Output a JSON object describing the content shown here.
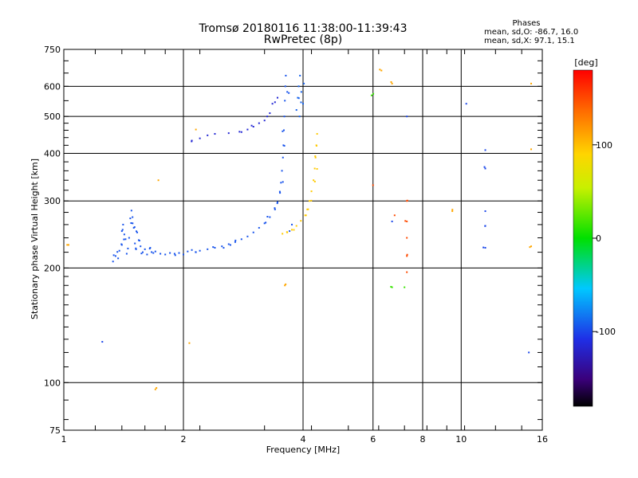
{
  "chart_data": {
    "type": "scatter",
    "title": "Tromsø 20180116 11:38:00-11:39:43",
    "subtitle": "RwPretec (8p)",
    "xlabel": "Frequency [MHz]",
    "ylabel": "Stationary phase Virtual Height [km]",
    "x_scale": "log",
    "y_scale": "log",
    "xlim": [
      1,
      16
    ],
    "ylim": [
      75,
      750
    ],
    "x_ticks": [
      1,
      2,
      4,
      6,
      8,
      10,
      16
    ],
    "y_ticks": [
      75,
      100,
      200,
      300,
      400,
      500,
      600,
      750
    ],
    "grid": true,
    "stats": {
      "heading": "Phases",
      "line_o": "mean, sd,O: -86.7, 16.0",
      "line_x": "mean, sd,X:  97.1, 15.1"
    },
    "colorbar": {
      "label": "[deg]",
      "ticks": [
        100,
        0,
        -100
      ],
      "range": [
        -180,
        180
      ],
      "colormap": "rainbow"
    },
    "series": [
      {
        "color_value": -95,
        "points": [
          [
            1.33,
            208
          ],
          [
            1.35,
            215
          ],
          [
            1.37,
            212
          ],
          [
            1.38,
            222
          ],
          [
            1.4,
            230
          ],
          [
            1.4,
            250
          ],
          [
            1.41,
            260
          ],
          [
            1.42,
            245
          ],
          [
            1.43,
            238
          ],
          [
            1.44,
            218
          ],
          [
            1.45,
            225
          ],
          [
            1.46,
            240
          ],
          [
            1.47,
            270
          ],
          [
            1.48,
            283
          ],
          [
            1.49,
            262
          ],
          [
            1.5,
            255
          ],
          [
            1.51,
            232
          ],
          [
            1.52,
            224
          ],
          [
            1.53,
            248
          ],
          [
            1.55,
            236
          ],
          [
            1.56,
            228
          ],
          [
            1.58,
            220
          ],
          [
            1.6,
            224
          ],
          [
            1.62,
            217
          ],
          [
            1.65,
            226
          ],
          [
            1.68,
            219
          ],
          [
            1.7,
            221
          ],
          [
            1.75,
            218
          ],
          [
            1.8,
            217
          ],
          [
            1.85,
            219
          ],
          [
            1.9,
            218
          ],
          [
            1.95,
            219
          ],
          [
            2.0,
            217
          ],
          [
            2.05,
            221
          ],
          [
            2.1,
            223
          ],
          [
            2.15,
            220
          ],
          [
            2.2,
            222
          ],
          [
            2.3,
            224
          ],
          [
            2.4,
            226
          ],
          [
            2.5,
            228
          ],
          [
            2.6,
            231
          ],
          [
            2.7,
            234
          ],
          [
            2.8,
            238
          ],
          [
            2.9,
            242
          ],
          [
            3.0,
            248
          ],
          [
            3.1,
            255
          ],
          [
            3.2,
            262
          ],
          [
            3.3,
            272
          ],
          [
            3.4,
            285
          ],
          [
            3.45,
            298
          ],
          [
            3.5,
            315
          ],
          [
            3.52,
            335
          ],
          [
            3.54,
            360
          ],
          [
            3.56,
            390
          ],
          [
            3.57,
            420
          ],
          [
            3.58,
            460
          ],
          [
            3.59,
            500
          ],
          [
            3.6,
            550
          ],
          [
            3.61,
            600
          ],
          [
            3.62,
            640
          ],
          [
            3.65,
            580
          ],
          [
            3.7,
            250
          ],
          [
            3.75,
            260
          ]
        ]
      },
      {
        "color_value": -115,
        "points": [
          [
            3.45,
            560
          ],
          [
            3.4,
            545
          ],
          [
            3.35,
            540
          ],
          [
            3.3,
            510
          ],
          [
            3.25,
            500
          ],
          [
            3.2,
            488
          ],
          [
            3.1,
            480
          ],
          [
            3.0,
            470
          ],
          [
            2.9,
            462
          ],
          [
            2.8,
            455
          ],
          [
            2.6,
            452
          ],
          [
            2.4,
            450
          ],
          [
            2.3,
            446
          ],
          [
            2.2,
            438
          ],
          [
            2.1,
            432
          ]
        ]
      },
      {
        "color_value": -90,
        "points": [
          [
            3.85,
            520
          ],
          [
            3.88,
            560
          ],
          [
            3.9,
            600
          ],
          [
            3.93,
            640
          ],
          [
            3.96,
            580
          ],
          [
            4.0,
            540
          ],
          [
            4.02,
            610
          ],
          [
            3.92,
            500
          ]
        ]
      },
      {
        "color_value": 95,
        "points": [
          [
            3.55,
            246
          ],
          [
            3.65,
            248
          ],
          [
            3.75,
            252
          ],
          [
            3.85,
            258
          ],
          [
            3.95,
            266
          ],
          [
            4.05,
            275
          ],
          [
            4.1,
            285
          ],
          [
            4.15,
            300
          ],
          [
            4.2,
            318
          ],
          [
            4.25,
            340
          ],
          [
            4.28,
            365
          ],
          [
            4.3,
            390
          ],
          [
            4.32,
            420
          ],
          [
            4.34,
            450
          ]
        ]
      },
      {
        "color_value": 110,
        "points": [
          [
            1.02,
            230
          ],
          [
            1.73,
            340
          ],
          [
            1.7,
            96
          ],
          [
            2.07,
            127
          ],
          [
            2.15,
            462
          ],
          [
            3.6,
            180
          ],
          [
            6.3,
            660
          ],
          [
            6.7,
            610
          ],
          [
            9.5,
            282
          ],
          [
            15.0,
            610
          ],
          [
            15.0,
            410
          ],
          [
            15.0,
            228
          ]
        ]
      },
      {
        "color_value": 150,
        "points": [
          [
            6.0,
            330
          ],
          [
            7.3,
            300
          ],
          [
            7.3,
            265
          ],
          [
            7.3,
            240
          ],
          [
            7.3,
            215
          ],
          [
            7.3,
            195
          ],
          [
            6.8,
            275
          ]
        ]
      },
      {
        "color_value": -100,
        "points": [
          [
            1.25,
            128
          ],
          [
            11.5,
            408
          ],
          [
            11.5,
            365
          ],
          [
            11.5,
            282
          ],
          [
            11.5,
            258
          ],
          [
            11.5,
            226
          ],
          [
            14.8,
            120
          ],
          [
            10.3,
            540
          ],
          [
            6.7,
            265
          ],
          [
            7.3,
            500
          ]
        ]
      },
      {
        "color_value": 15,
        "points": [
          [
            5.95,
            568
          ],
          [
            6.7,
            178
          ],
          [
            7.2,
            178
          ]
        ]
      }
    ]
  }
}
